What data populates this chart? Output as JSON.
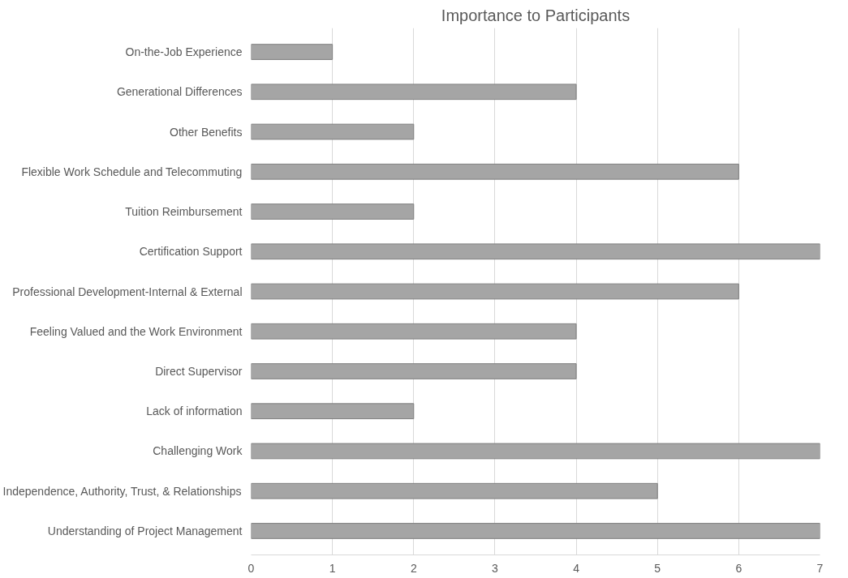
{
  "chart_data": {
    "type": "bar",
    "orientation": "horizontal",
    "title": "Importance to Participants",
    "categories": [
      "On-the-Job Experience",
      "Generational Differences",
      "Other Benefits",
      "Flexible Work Schedule and Telecommuting",
      "Tuition Reimbursement",
      "Certification Support",
      "Professional Development-Internal & External",
      "Feeling Valued and the Work Environment",
      "Direct Supervisor",
      "Lack of information",
      "Challenging Work",
      "Independence, Authority, Trust, & Relationships",
      "Understanding of Project Management"
    ],
    "values": [
      1,
      4,
      2,
      6,
      2,
      7,
      6,
      4,
      4,
      2,
      7,
      5,
      7
    ],
    "color": "#a5a5a5",
    "xlim": [
      0,
      7
    ],
    "xticks": [
      0,
      1,
      2,
      3,
      4,
      5,
      6,
      7
    ],
    "grid": "x"
  }
}
